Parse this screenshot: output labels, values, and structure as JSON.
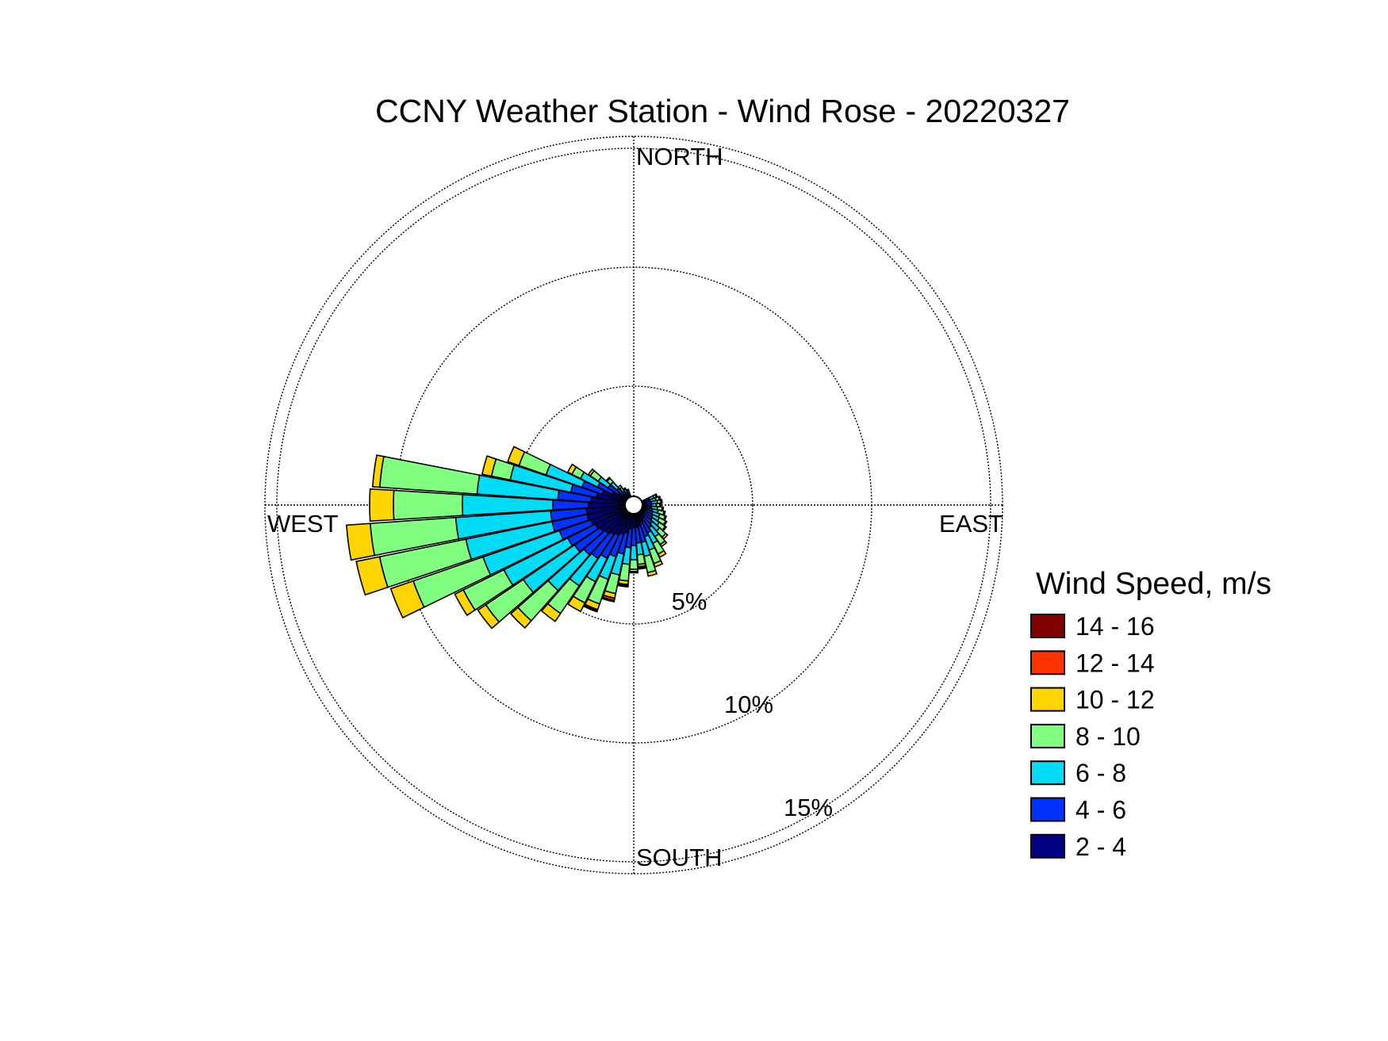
{
  "chart_data": {
    "type": "wind-rose",
    "title": "CCNY Weather Station - Wind Rose - 20220327",
    "direction_labels": {
      "north": "NORTH",
      "east": "EAST",
      "south": "SOUTH",
      "west": "WEST"
    },
    "radial_ticks": [
      {
        "value": 5,
        "label": "5%"
      },
      {
        "value": 10,
        "label": "10%"
      },
      {
        "value": 15,
        "label": "15%"
      }
    ],
    "radial_max": 15.5,
    "calm_radius_value": 0.35,
    "legend": {
      "title": "Wind Speed, m/s",
      "bins": [
        {
          "label": "14 - 16",
          "color": "#800000"
        },
        {
          "label": "12 - 14",
          "color": "#ff3300"
        },
        {
          "label": "10 - 12",
          "color": "#ffd500"
        },
        {
          "label": "8 - 10",
          "color": "#80ff80"
        },
        {
          "label": "6 - 8",
          "color": "#00dcf5"
        },
        {
          "label": "4 - 6",
          "color": "#0033ff"
        },
        {
          "label": "2 - 4",
          "color": "#000080"
        }
      ]
    },
    "stack_order_inner_to_outer": [
      "2 - 4",
      "4 - 6",
      "6 - 8",
      "8 - 10",
      "10 - 12",
      "12 - 14",
      "14 - 16"
    ],
    "sectors": [
      {
        "dir": 67.5,
        "cumulative": [
          0.45,
          0.7,
          0.9,
          1.0,
          1.05,
          1.05,
          1.05
        ]
      },
      {
        "dir": 75,
        "cumulative": [
          0.45,
          0.7,
          0.95,
          1.1,
          1.15,
          1.15,
          1.15
        ]
      },
      {
        "dir": 82.5,
        "cumulative": [
          0.45,
          0.75,
          1.0,
          1.15,
          1.2,
          1.2,
          1.2
        ]
      },
      {
        "dir": 90,
        "cumulative": [
          0.45,
          0.75,
          0.95,
          1.1,
          1.15,
          1.15,
          1.15
        ]
      },
      {
        "dir": 97.5,
        "cumulative": [
          0.45,
          0.75,
          1.0,
          1.2,
          1.25,
          1.25,
          1.25
        ]
      },
      {
        "dir": 105,
        "cumulative": [
          0.45,
          0.8,
          1.05,
          1.3,
          1.35,
          1.35,
          1.35
        ]
      },
      {
        "dir": 112.5,
        "cumulative": [
          0.5,
          0.85,
          1.15,
          1.4,
          1.45,
          1.45,
          1.45
        ]
      },
      {
        "dir": 120,
        "cumulative": [
          0.5,
          0.9,
          1.2,
          1.5,
          1.55,
          1.55,
          1.55
        ]
      },
      {
        "dir": 127.5,
        "cumulative": [
          0.55,
          0.95,
          1.3,
          1.6,
          1.65,
          1.65,
          1.65
        ]
      },
      {
        "dir": 135,
        "cumulative": [
          0.6,
          1.05,
          1.45,
          1.8,
          1.9,
          1.9,
          1.9
        ]
      },
      {
        "dir": 142.5,
        "cumulative": [
          0.65,
          1.15,
          1.6,
          2.0,
          2.1,
          2.1,
          2.1
        ]
      },
      {
        "dir": 150,
        "cumulative": [
          0.75,
          1.3,
          1.8,
          2.3,
          2.45,
          2.45,
          2.45
        ]
      },
      {
        "dir": 157.5,
        "cumulative": [
          0.8,
          1.4,
          2.0,
          2.6,
          2.75,
          2.75,
          2.75
        ]
      },
      {
        "dir": 165,
        "cumulative": [
          0.9,
          1.6,
          2.2,
          2.9,
          3.05,
          3.05,
          3.05
        ]
      },
      {
        "dir": 172.5,
        "cumulative": [
          0.95,
          1.6,
          2.1,
          2.5,
          2.6,
          2.65,
          2.7
        ]
      },
      {
        "dir": 180,
        "cumulative": [
          0.95,
          1.7,
          2.3,
          2.7,
          2.8,
          2.85,
          2.85
        ]
      },
      {
        "dir": 187.5,
        "cumulative": [
          1.0,
          1.8,
          2.5,
          3.2,
          3.35,
          3.4,
          3.45
        ]
      },
      {
        "dir": 195,
        "cumulative": [
          1.2,
          2.1,
          3.0,
          3.8,
          4.0,
          4.1,
          4.15
        ]
      },
      {
        "dir": 202.5,
        "cumulative": [
          1.3,
          2.3,
          3.3,
          4.4,
          4.65,
          4.7,
          4.75
        ]
      },
      {
        "dir": 210,
        "cumulative": [
          1.4,
          2.5,
          3.6,
          4.6,
          5.0,
          5.0,
          5.0
        ]
      },
      {
        "dir": 217.5,
        "cumulative": [
          1.5,
          2.7,
          4.1,
          5.5,
          5.9,
          5.9,
          5.9
        ]
      },
      {
        "dir": 225,
        "cumulative": [
          1.6,
          2.8,
          4.8,
          6.5,
          6.9,
          6.9,
          6.9
        ]
      },
      {
        "dir": 232.5,
        "cumulative": [
          1.7,
          3.0,
          5.6,
          7.5,
          7.9,
          7.9,
          7.9
        ]
      },
      {
        "dir": 240,
        "cumulative": [
          1.8,
          3.1,
          6.1,
          8.0,
          8.4,
          8.4,
          8.4
        ]
      },
      {
        "dir": 247.5,
        "cumulative": [
          1.9,
          3.3,
          6.7,
          9.8,
          10.8,
          10.8,
          10.8
        ]
      },
      {
        "dir": 255,
        "cumulative": [
          2.0,
          3.5,
          7.2,
          10.9,
          11.9,
          11.9,
          11.9
        ]
      },
      {
        "dir": 262.5,
        "cumulative": [
          2.0,
          3.5,
          7.5,
          11.1,
          12.1,
          12.1,
          12.1
        ]
      },
      {
        "dir": 270,
        "cumulative": [
          1.9,
          3.4,
          7.2,
          10.1,
          11.1,
          11.1,
          11.1
        ]
      },
      {
        "dir": 277.5,
        "cumulative": [
          1.8,
          3.2,
          6.6,
          10.7,
          11.0,
          11.0,
          11.0
        ]
      },
      {
        "dir": 285,
        "cumulative": [
          1.6,
          2.7,
          5.3,
          6.1,
          6.5,
          6.5,
          6.5
        ]
      },
      {
        "dir": 292.5,
        "cumulative": [
          1.4,
          2.3,
          3.9,
          5.1,
          5.6,
          5.6,
          5.6
        ]
      },
      {
        "dir": 300,
        "cumulative": [
          1.0,
          1.7,
          2.5,
          2.9,
          3.1,
          3.1,
          3.1
        ]
      },
      {
        "dir": 307.5,
        "cumulative": [
          0.8,
          1.3,
          1.8,
          2.2,
          2.3,
          2.3,
          2.3
        ]
      },
      {
        "dir": 315,
        "cumulative": [
          0.6,
          0.95,
          1.3,
          1.5,
          1.55,
          1.55,
          1.55
        ]
      },
      {
        "dir": 322.5,
        "cumulative": [
          0.45,
          0.7,
          0.9,
          1.0,
          1.0,
          1.0,
          1.0
        ]
      },
      {
        "dir": 330,
        "cumulative": [
          0.45,
          0.6,
          0.75,
          0.8,
          0.8,
          0.8,
          0.8
        ]
      },
      {
        "dir": 337.5,
        "cumulative": [
          0.4,
          0.55,
          0.65,
          0.7,
          0.7,
          0.7,
          0.7
        ]
      }
    ]
  }
}
